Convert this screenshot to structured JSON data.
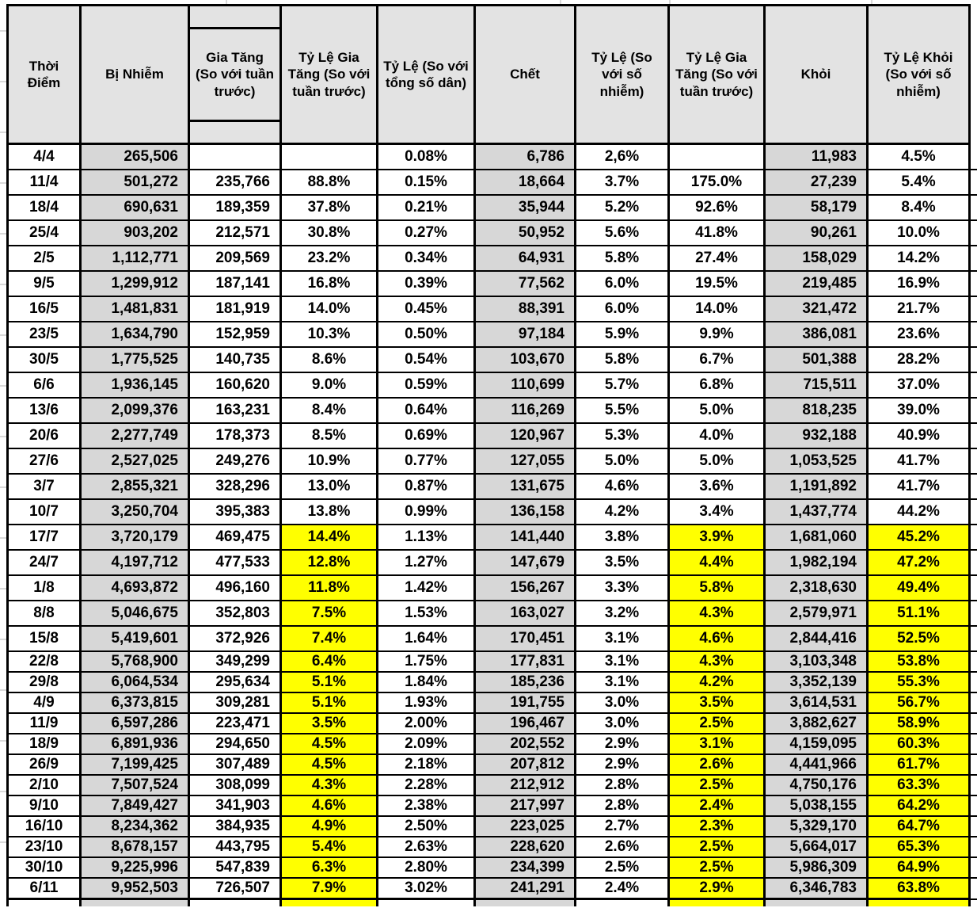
{
  "colors": {
    "grid_border": "#000000",
    "header_bg": "#e3e3e3",
    "gray_col_bg": "#d7d7d7",
    "highlight_bg": "#ffff00",
    "text": "#000000",
    "page_bg": "#ffffff",
    "faint_gridline": "#d9d9d9"
  },
  "chart_data": {
    "type": "table",
    "title": "",
    "columns": [
      "Thời Điểm",
      "Bị Nhiễm",
      "Gia Tăng (So với tuần trước)",
      "Tỷ Lệ Gia Tăng (So với tuần trước)",
      "Tỷ Lệ (So với tổng số dân)",
      "Chết",
      "Tỷ Lệ (So với số nhiễm)",
      "Tỷ Lệ Gia Tăng (So với tuần trước)",
      "Khỏi",
      "Tỷ Lệ Khỏi (So với số nhiễm)"
    ],
    "gray_columns": [
      1,
      5,
      8
    ],
    "highlight_columns": [
      3,
      7,
      9
    ],
    "highlight_start_row_label": "17/7",
    "highlight_start_row_index": 15,
    "rows": [
      [
        "4/4",
        "265,506",
        "",
        "",
        "0.08%",
        "6,786",
        "2,6%",
        "",
        "11,983",
        "4.5%"
      ],
      [
        "11/4",
        "501,272",
        "235,766",
        "88.8%",
        "0.15%",
        "18,664",
        "3.7%",
        "175.0%",
        "27,239",
        "5.4%"
      ],
      [
        "18/4",
        "690,631",
        "189,359",
        "37.8%",
        "0.21%",
        "35,944",
        "5.2%",
        "92.6%",
        "58,179",
        "8.4%"
      ],
      [
        "25/4",
        "903,202",
        "212,571",
        "30.8%",
        "0.27%",
        "50,952",
        "5.6%",
        "41.8%",
        "90,261",
        "10.0%"
      ],
      [
        "2/5",
        "1,112,771",
        "209,569",
        "23.2%",
        "0.34%",
        "64,931",
        "5.8%",
        "27.4%",
        "158,029",
        "14.2%"
      ],
      [
        "9/5",
        "1,299,912",
        "187,141",
        "16.8%",
        "0.39%",
        "77,562",
        "6.0%",
        "19.5%",
        "219,485",
        "16.9%"
      ],
      [
        "16/5",
        "1,481,831",
        "181,919",
        "14.0%",
        "0.45%",
        "88,391",
        "6.0%",
        "14.0%",
        "321,472",
        "21.7%"
      ],
      [
        "23/5",
        "1,634,790",
        "152,959",
        "10.3%",
        "0.50%",
        "97,184",
        "5.9%",
        "9.9%",
        "386,081",
        "23.6%"
      ],
      [
        "30/5",
        "1,775,525",
        "140,735",
        "8.6%",
        "0.54%",
        "103,670",
        "5.8%",
        "6.7%",
        "501,388",
        "28.2%"
      ],
      [
        "6/6",
        "1,936,145",
        "160,620",
        "9.0%",
        "0.59%",
        "110,699",
        "5.7%",
        "6.8%",
        "715,511",
        "37.0%"
      ],
      [
        "13/6",
        "2,099,376",
        "163,231",
        "8.4%",
        "0.64%",
        "116,269",
        "5.5%",
        "5.0%",
        "818,235",
        "39.0%"
      ],
      [
        "20/6",
        "2,277,749",
        "178,373",
        "8.5%",
        "0.69%",
        "120,967",
        "5.3%",
        "4.0%",
        "932,188",
        "40.9%"
      ],
      [
        "27/6",
        "2,527,025",
        "249,276",
        "10.9%",
        "0.77%",
        "127,055",
        "5.0%",
        "5.0%",
        "1,053,525",
        "41.7%"
      ],
      [
        "3/7",
        "2,855,321",
        "328,296",
        "13.0%",
        "0.87%",
        "131,675",
        "4.6%",
        "3.6%",
        "1,191,892",
        "41.7%"
      ],
      [
        "10/7",
        "3,250,704",
        "395,383",
        "13.8%",
        "0.99%",
        "136,158",
        "4.2%",
        "3.4%",
        "1,437,774",
        "44.2%"
      ],
      [
        "17/7",
        "3,720,179",
        "469,475",
        "14.4%",
        "1.13%",
        "141,440",
        "3.8%",
        "3.9%",
        "1,681,060",
        "45.2%"
      ],
      [
        "24/7",
        "4,197,712",
        "477,533",
        "12.8%",
        "1.27%",
        "147,679",
        "3.5%",
        "4.4%",
        "1,982,194",
        "47.2%"
      ],
      [
        "1/8",
        "4,693,872",
        "496,160",
        "11.8%",
        "1.42%",
        "156,267",
        "3.3%",
        "5.8%",
        "2,318,630",
        "49.4%"
      ],
      [
        "8/8",
        "5,046,675",
        "352,803",
        "7.5%",
        "1.53%",
        "163,027",
        "3.2%",
        "4.3%",
        "2,579,971",
        "51.1%"
      ],
      [
        "15/8",
        "5,419,601",
        "372,926",
        "7.4%",
        "1.64%",
        "170,451",
        "3.1%",
        "4.6%",
        "2,844,416",
        "52.5%"
      ],
      [
        "22/8",
        "5,768,900",
        "349,299",
        "6.4%",
        "1.75%",
        "177,831",
        "3.1%",
        "4.3%",
        "3,103,348",
        "53.8%"
      ],
      [
        "29/8",
        "6,064,534",
        "295,634",
        "5.1%",
        "1.84%",
        "185,236",
        "3.1%",
        "4.2%",
        "3,352,139",
        "55.3%"
      ],
      [
        "4/9",
        "6,373,815",
        "309,281",
        "5.1%",
        "1.93%",
        "191,755",
        "3.0%",
        "3.5%",
        "3,614,531",
        "56.7%"
      ],
      [
        "11/9",
        "6,597,286",
        "223,471",
        "3.5%",
        "2.00%",
        "196,467",
        "3.0%",
        "2.5%",
        "3,882,627",
        "58.9%"
      ],
      [
        "18/9",
        "6,891,936",
        "294,650",
        "4.5%",
        "2.09%",
        "202,552",
        "2.9%",
        "3.1%",
        "4,159,095",
        "60.3%"
      ],
      [
        "26/9",
        "7,199,425",
        "307,489",
        "4.5%",
        "2.18%",
        "207,812",
        "2.9%",
        "2.6%",
        "4,441,966",
        "61.7%"
      ],
      [
        "2/10",
        "7,507,524",
        "308,099",
        "4.3%",
        "2.28%",
        "212,912",
        "2.8%",
        "2.5%",
        "4,750,176",
        "63.3%"
      ],
      [
        "9/10",
        "7,849,427",
        "341,903",
        "4.6%",
        "2.38%",
        "217,997",
        "2.8%",
        "2.4%",
        "5,038,155",
        "64.2%"
      ],
      [
        "16/10",
        "8,234,362",
        "384,935",
        "4.9%",
        "2.50%",
        "223,025",
        "2.7%",
        "2.3%",
        "5,329,170",
        "64.7%"
      ],
      [
        "23/10",
        "8,678,157",
        "443,795",
        "5.4%",
        "2.63%",
        "228,620",
        "2.6%",
        "2.5%",
        "5,664,017",
        "65.3%"
      ],
      [
        "30/10",
        "9,225,996",
        "547,839",
        "6.3%",
        "2.80%",
        "234,399",
        "2.5%",
        "2.5%",
        "5,986,309",
        "64.9%"
      ],
      [
        "6/11",
        "9,952,503",
        "726,507",
        "7.9%",
        "3.02%",
        "241,291",
        "2.4%",
        "2.9%",
        "6,346,783",
        "63.8%"
      ]
    ]
  }
}
